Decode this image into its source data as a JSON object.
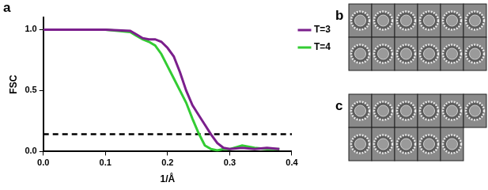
{
  "chart_data": {
    "panel": "a",
    "type": "line",
    "x_label": "1/Å",
    "y_label": "FSC",
    "xlim": [
      0,
      0.4
    ],
    "xticks": [
      {
        "value": 0,
        "label": "0.0"
      },
      0.1,
      0.2,
      0.3,
      0.4
    ],
    "ylim": [
      0,
      1.1
    ],
    "yticks": [
      {
        "value": 0,
        "label": "0.0"
      },
      0.5,
      {
        "value": 1,
        "label": "1.0"
      }
    ],
    "grid": false,
    "legend": "top right",
    "x": [
      0,
      0.1,
      0.14,
      0.15,
      0.16,
      0.17,
      0.18,
      0.19,
      0.2,
      0.21,
      0.22,
      0.23,
      0.24,
      0.25,
      0.26,
      0.27,
      0.28,
      0.29,
      0.3,
      0.32,
      0.34,
      0.36,
      0.38
    ],
    "series": [
      {
        "name": "T=3",
        "color": "#7b1f8c",
        "values": [
          1.0,
          1.0,
          0.99,
          0.96,
          0.93,
          0.92,
          0.92,
          0.9,
          0.85,
          0.78,
          0.65,
          0.5,
          0.38,
          0.3,
          0.22,
          0.14,
          0.07,
          0.03,
          0.02,
          0.03,
          0.02,
          0.03,
          0.02
        ]
      },
      {
        "name": "T=4",
        "color": "#33cc33",
        "values": [
          1.0,
          1.0,
          0.98,
          0.95,
          0.92,
          0.9,
          0.87,
          0.8,
          0.7,
          0.6,
          0.5,
          0.4,
          0.27,
          0.15,
          0.05,
          0.02,
          0.01,
          0.02,
          0.02,
          0.05,
          0.03,
          0.02,
          0.02
        ]
      }
    ],
    "reference_line": {
      "y": 0.143,
      "color": "#000000",
      "line_style": "dashed"
    }
  },
  "images": [
    {
      "panel": "b",
      "count": 12
    },
    {
      "panel": "c",
      "count": 11
    }
  ]
}
